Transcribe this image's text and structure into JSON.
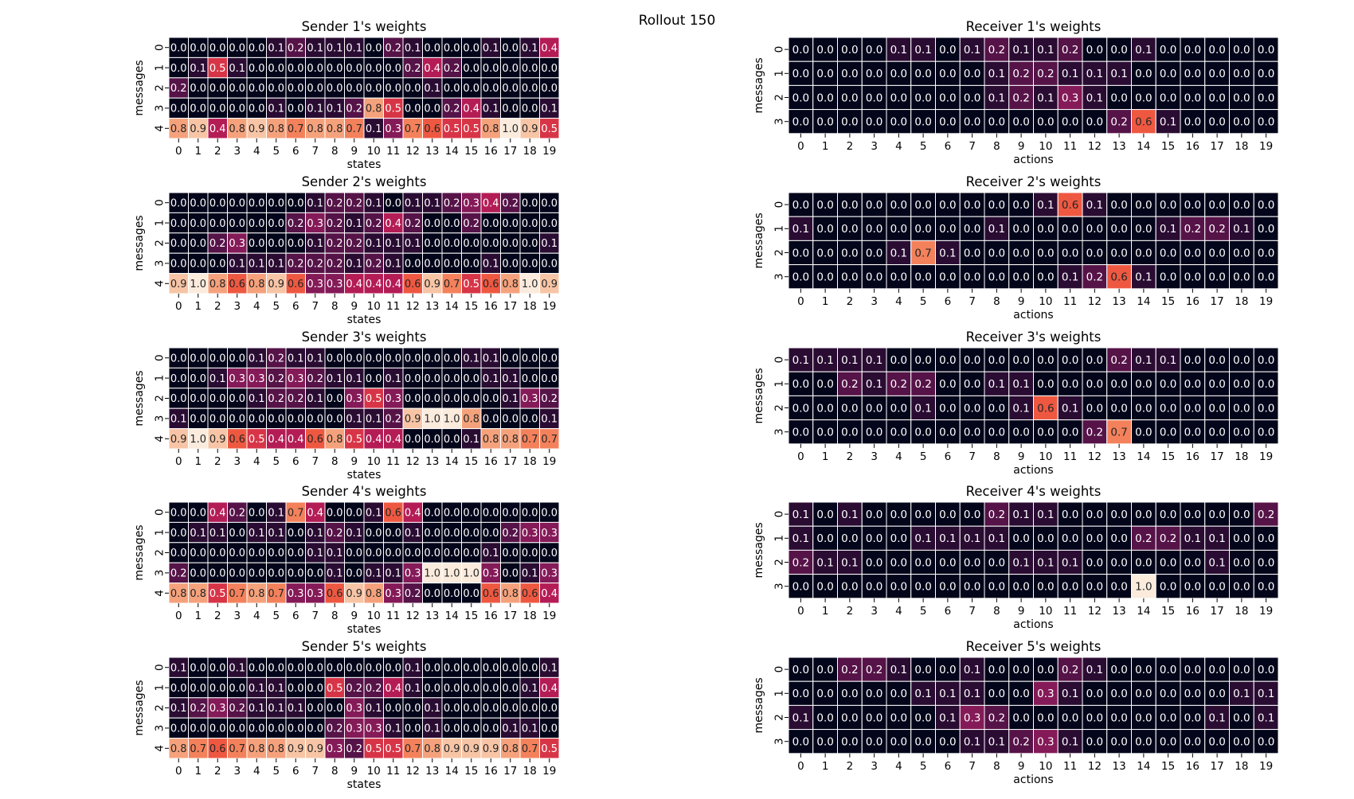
{
  "suptitle": "Rollout 150",
  "colormap": [
    "#03051a",
    "#3b0f3e",
    "#7e1a58",
    "#c11d54",
    "#ec4c3a",
    "#f4875f",
    "#f6b48f",
    "#faebdd"
  ],
  "grid_line_color": "#ffffff",
  "chart_data": [
    {
      "type": "heatmap",
      "title": "Sender 1's weights",
      "xlabel": "states",
      "ylabel": "messages",
      "x": [
        0,
        1,
        2,
        3,
        4,
        5,
        6,
        7,
        8,
        9,
        10,
        11,
        12,
        13,
        14,
        15,
        16,
        17,
        18,
        19
      ],
      "y": [
        0,
        1,
        2,
        3,
        4
      ],
      "values": [
        [
          0.0,
          0.0,
          0.0,
          0.0,
          0.0,
          0.1,
          0.2,
          0.1,
          0.1,
          0.1,
          0.0,
          0.2,
          0.1,
          0.0,
          0.0,
          0.0,
          0.1,
          0.0,
          0.1,
          0.4
        ],
        [
          0.0,
          0.1,
          0.5,
          0.1,
          0.0,
          0.0,
          0.0,
          0.0,
          0.0,
          0.0,
          0.0,
          0.0,
          0.2,
          0.4,
          0.2,
          0.0,
          0.0,
          0.0,
          0.0,
          0.0
        ],
        [
          0.2,
          0.0,
          0.0,
          0.0,
          0.0,
          0.0,
          0.0,
          0.0,
          0.0,
          0.0,
          0.0,
          0.0,
          0.0,
          0.1,
          0.0,
          0.0,
          0.0,
          0.0,
          0.0,
          0.0
        ],
        [
          0.0,
          0.0,
          0.0,
          0.0,
          0.0,
          0.1,
          0.0,
          0.1,
          0.1,
          0.2,
          0.8,
          0.5,
          0.0,
          0.0,
          0.2,
          0.4,
          0.1,
          0.0,
          0.0,
          0.1
        ],
        [
          0.8,
          0.9,
          0.4,
          0.8,
          0.9,
          0.8,
          0.7,
          0.8,
          0.8,
          0.7,
          0.1,
          0.3,
          0.7,
          0.6,
          0.5,
          0.5,
          0.8,
          1.0,
          0.9,
          0.5
        ]
      ]
    },
    {
      "type": "heatmap",
      "title": "Receiver 1's weights",
      "xlabel": "actions",
      "ylabel": "messages",
      "x": [
        0,
        1,
        2,
        3,
        4,
        5,
        6,
        7,
        8,
        9,
        10,
        11,
        12,
        13,
        14,
        15,
        16,
        17,
        18,
        19
      ],
      "y": [
        0,
        1,
        2,
        3
      ],
      "values": [
        [
          0.0,
          0.0,
          0.0,
          0.0,
          0.1,
          0.1,
          0.0,
          0.1,
          0.2,
          0.1,
          0.1,
          0.2,
          0.0,
          0.0,
          0.1,
          0.0,
          0.0,
          0.0,
          0.0,
          0.0
        ],
        [
          0.0,
          0.0,
          0.0,
          0.0,
          0.0,
          0.0,
          0.0,
          0.0,
          0.1,
          0.2,
          0.2,
          0.1,
          0.1,
          0.1,
          0.0,
          0.0,
          0.0,
          0.0,
          0.0,
          0.0
        ],
        [
          0.0,
          0.0,
          0.0,
          0.0,
          0.0,
          0.0,
          0.0,
          0.0,
          0.1,
          0.2,
          0.1,
          0.3,
          0.1,
          0.0,
          0.0,
          0.0,
          0.0,
          0.0,
          0.0,
          0.0
        ],
        [
          0.0,
          0.0,
          0.0,
          0.0,
          0.0,
          0.0,
          0.0,
          0.0,
          0.0,
          0.0,
          0.0,
          0.0,
          0.0,
          0.2,
          0.6,
          0.1,
          0.0,
          0.0,
          0.0,
          0.0
        ]
      ]
    },
    {
      "type": "heatmap",
      "title": "Sender 2's weights",
      "xlabel": "states",
      "ylabel": "messages",
      "x": [
        0,
        1,
        2,
        3,
        4,
        5,
        6,
        7,
        8,
        9,
        10,
        11,
        12,
        13,
        14,
        15,
        16,
        17,
        18,
        19
      ],
      "y": [
        0,
        1,
        2,
        3,
        4
      ],
      "values": [
        [
          0.0,
          0.0,
          0.0,
          0.0,
          0.0,
          0.0,
          0.0,
          0.1,
          0.2,
          0.2,
          0.1,
          0.0,
          0.1,
          0.1,
          0.2,
          0.3,
          0.4,
          0.2,
          0.0,
          0.0
        ],
        [
          0.0,
          0.0,
          0.0,
          0.0,
          0.0,
          0.0,
          0.2,
          0.3,
          0.2,
          0.1,
          0.2,
          0.4,
          0.2,
          0.0,
          0.0,
          0.2,
          0.0,
          0.0,
          0.0,
          0.0
        ],
        [
          0.0,
          0.0,
          0.2,
          0.3,
          0.0,
          0.0,
          0.0,
          0.1,
          0.2,
          0.2,
          0.1,
          0.1,
          0.1,
          0.0,
          0.0,
          0.0,
          0.0,
          0.0,
          0.0,
          0.1
        ],
        [
          0.0,
          0.0,
          0.0,
          0.1,
          0.1,
          0.1,
          0.2,
          0.2,
          0.2,
          0.1,
          0.2,
          0.1,
          0.0,
          0.0,
          0.0,
          0.0,
          0.1,
          0.0,
          0.0,
          0.0
        ],
        [
          0.9,
          1.0,
          0.8,
          0.6,
          0.8,
          0.9,
          0.6,
          0.3,
          0.3,
          0.4,
          0.4,
          0.4,
          0.6,
          0.9,
          0.7,
          0.5,
          0.6,
          0.8,
          1.0,
          0.9
        ]
      ]
    },
    {
      "type": "heatmap",
      "title": "Receiver 2's weights",
      "xlabel": "actions",
      "ylabel": "messages",
      "x": [
        0,
        1,
        2,
        3,
        4,
        5,
        6,
        7,
        8,
        9,
        10,
        11,
        12,
        13,
        14,
        15,
        16,
        17,
        18,
        19
      ],
      "y": [
        0,
        1,
        2,
        3
      ],
      "values": [
        [
          0.0,
          0.0,
          0.0,
          0.0,
          0.0,
          0.0,
          0.0,
          0.0,
          0.0,
          0.0,
          0.1,
          0.6,
          0.1,
          0.0,
          0.0,
          0.0,
          0.0,
          0.0,
          0.0,
          0.0
        ],
        [
          0.1,
          0.0,
          0.0,
          0.0,
          0.0,
          0.0,
          0.0,
          0.0,
          0.1,
          0.0,
          0.0,
          0.0,
          0.0,
          0.0,
          0.0,
          0.1,
          0.2,
          0.2,
          0.1,
          0.0
        ],
        [
          0.0,
          0.0,
          0.0,
          0.0,
          0.1,
          0.7,
          0.1,
          0.0,
          0.0,
          0.0,
          0.0,
          0.0,
          0.0,
          0.0,
          0.0,
          0.0,
          0.0,
          0.0,
          0.0,
          0.0
        ],
        [
          0.0,
          0.0,
          0.0,
          0.0,
          0.0,
          0.0,
          0.0,
          0.0,
          0.0,
          0.0,
          0.0,
          0.1,
          0.2,
          0.6,
          0.1,
          0.0,
          0.0,
          0.0,
          0.0,
          0.0
        ]
      ]
    },
    {
      "type": "heatmap",
      "title": "Sender 3's weights",
      "xlabel": "states",
      "ylabel": "messages",
      "x": [
        0,
        1,
        2,
        3,
        4,
        5,
        6,
        7,
        8,
        9,
        10,
        11,
        12,
        13,
        14,
        15,
        16,
        17,
        18,
        19
      ],
      "y": [
        0,
        1,
        2,
        3,
        4
      ],
      "values": [
        [
          0.0,
          0.0,
          0.0,
          0.0,
          0.1,
          0.2,
          0.1,
          0.1,
          0.0,
          0.0,
          0.0,
          0.0,
          0.0,
          0.0,
          0.0,
          0.1,
          0.1,
          0.0,
          0.0,
          0.0
        ],
        [
          0.0,
          0.0,
          0.1,
          0.3,
          0.3,
          0.2,
          0.3,
          0.2,
          0.1,
          0.1,
          0.0,
          0.1,
          0.0,
          0.0,
          0.0,
          0.0,
          0.1,
          0.1,
          0.0,
          0.0
        ],
        [
          0.0,
          0.0,
          0.0,
          0.0,
          0.1,
          0.2,
          0.2,
          0.1,
          0.0,
          0.3,
          0.5,
          0.3,
          0.0,
          0.0,
          0.0,
          0.0,
          0.0,
          0.1,
          0.3,
          0.2
        ],
        [
          0.1,
          0.0,
          0.0,
          0.0,
          0.0,
          0.0,
          0.0,
          0.0,
          0.0,
          0.1,
          0.1,
          0.2,
          0.9,
          1.0,
          1.0,
          0.8,
          0.0,
          0.0,
          0.0,
          0.1
        ],
        [
          0.9,
          1.0,
          0.9,
          0.6,
          0.5,
          0.4,
          0.4,
          0.6,
          0.8,
          0.5,
          0.4,
          0.4,
          0.0,
          0.0,
          0.0,
          0.1,
          0.8,
          0.8,
          0.7,
          0.7
        ]
      ]
    },
    {
      "type": "heatmap",
      "title": "Receiver 3's weights",
      "xlabel": "actions",
      "ylabel": "messages",
      "x": [
        0,
        1,
        2,
        3,
        4,
        5,
        6,
        7,
        8,
        9,
        10,
        11,
        12,
        13,
        14,
        15,
        16,
        17,
        18,
        19
      ],
      "y": [
        0,
        1,
        2,
        3
      ],
      "values": [
        [
          0.1,
          0.1,
          0.1,
          0.1,
          0.0,
          0.0,
          0.0,
          0.0,
          0.0,
          0.0,
          0.0,
          0.0,
          0.0,
          0.2,
          0.1,
          0.1,
          0.0,
          0.0,
          0.0,
          0.0
        ],
        [
          0.0,
          0.0,
          0.2,
          0.1,
          0.2,
          0.2,
          0.0,
          0.0,
          0.1,
          0.1,
          0.0,
          0.0,
          0.0,
          0.0,
          0.0,
          0.0,
          0.0,
          0.0,
          0.0,
          0.0
        ],
        [
          0.0,
          0.0,
          0.0,
          0.0,
          0.0,
          0.1,
          0.0,
          0.0,
          0.0,
          0.1,
          0.6,
          0.1,
          0.0,
          0.0,
          0.0,
          0.0,
          0.0,
          0.0,
          0.0,
          0.0
        ],
        [
          0.0,
          0.0,
          0.0,
          0.0,
          0.0,
          0.0,
          0.0,
          0.0,
          0.0,
          0.0,
          0.0,
          0.0,
          0.2,
          0.7,
          0.0,
          0.0,
          0.0,
          0.0,
          0.0,
          0.0
        ]
      ]
    },
    {
      "type": "heatmap",
      "title": "Sender 4's weights",
      "xlabel": "states",
      "ylabel": "messages",
      "x": [
        0,
        1,
        2,
        3,
        4,
        5,
        6,
        7,
        8,
        9,
        10,
        11,
        12,
        13,
        14,
        15,
        16,
        17,
        18,
        19
      ],
      "y": [
        0,
        1,
        2,
        3,
        4
      ],
      "values": [
        [
          0.0,
          0.0,
          0.4,
          0.2,
          0.0,
          0.1,
          0.7,
          0.4,
          0.0,
          0.0,
          0.1,
          0.6,
          0.4,
          0.0,
          0.0,
          0.0,
          0.0,
          0.0,
          0.0,
          0.0
        ],
        [
          0.0,
          0.1,
          0.1,
          0.0,
          0.1,
          0.1,
          0.0,
          0.1,
          0.2,
          0.1,
          0.0,
          0.0,
          0.1,
          0.0,
          0.0,
          0.0,
          0.0,
          0.2,
          0.3,
          0.3
        ],
        [
          0.0,
          0.0,
          0.0,
          0.0,
          0.0,
          0.0,
          0.0,
          0.1,
          0.1,
          0.0,
          0.0,
          0.0,
          0.0,
          0.0,
          0.0,
          0.0,
          0.1,
          0.0,
          0.0,
          0.0
        ],
        [
          0.2,
          0.0,
          0.0,
          0.0,
          0.0,
          0.0,
          0.0,
          0.0,
          0.1,
          0.0,
          0.1,
          0.1,
          0.3,
          1.0,
          1.0,
          1.0,
          0.3,
          0.0,
          0.1,
          0.3
        ],
        [
          0.8,
          0.8,
          0.5,
          0.7,
          0.8,
          0.7,
          0.3,
          0.3,
          0.6,
          0.9,
          0.8,
          0.3,
          0.2,
          0.0,
          0.0,
          0.0,
          0.6,
          0.8,
          0.6,
          0.4
        ]
      ]
    },
    {
      "type": "heatmap",
      "title": "Receiver 4's weights",
      "xlabel": "actions",
      "ylabel": "messages",
      "x": [
        0,
        1,
        2,
        3,
        4,
        5,
        6,
        7,
        8,
        9,
        10,
        11,
        12,
        13,
        14,
        15,
        16,
        17,
        18,
        19
      ],
      "y": [
        0,
        1,
        2,
        3
      ],
      "values": [
        [
          0.1,
          0.0,
          0.1,
          0.0,
          0.0,
          0.0,
          0.0,
          0.0,
          0.2,
          0.1,
          0.1,
          0.0,
          0.0,
          0.0,
          0.0,
          0.0,
          0.0,
          0.0,
          0.0,
          0.2
        ],
        [
          0.1,
          0.0,
          0.0,
          0.0,
          0.0,
          0.1,
          0.1,
          0.1,
          0.1,
          0.0,
          0.0,
          0.0,
          0.0,
          0.0,
          0.2,
          0.2,
          0.1,
          0.1,
          0.0,
          0.0
        ],
        [
          0.2,
          0.1,
          0.1,
          0.0,
          0.0,
          0.0,
          0.0,
          0.0,
          0.0,
          0.1,
          0.1,
          0.1,
          0.0,
          0.0,
          0.0,
          0.0,
          0.0,
          0.1,
          0.0,
          0.0
        ],
        [
          0.0,
          0.0,
          0.0,
          0.0,
          0.0,
          0.0,
          0.0,
          0.0,
          0.0,
          0.0,
          0.0,
          0.0,
          0.0,
          0.0,
          1.0,
          0.0,
          0.0,
          0.0,
          0.0,
          0.0
        ]
      ]
    },
    {
      "type": "heatmap",
      "title": "Sender 5's weights",
      "xlabel": "states",
      "ylabel": "messages",
      "x": [
        0,
        1,
        2,
        3,
        4,
        5,
        6,
        7,
        8,
        9,
        10,
        11,
        12,
        13,
        14,
        15,
        16,
        17,
        18,
        19
      ],
      "y": [
        0,
        1,
        2,
        3,
        4
      ],
      "values": [
        [
          0.1,
          0.0,
          0.0,
          0.1,
          0.0,
          0.0,
          0.0,
          0.0,
          0.0,
          0.0,
          0.0,
          0.0,
          0.1,
          0.0,
          0.0,
          0.0,
          0.0,
          0.0,
          0.0,
          0.1
        ],
        [
          0.0,
          0.0,
          0.0,
          0.0,
          0.1,
          0.1,
          0.0,
          0.0,
          0.5,
          0.2,
          0.2,
          0.4,
          0.1,
          0.0,
          0.0,
          0.0,
          0.0,
          0.0,
          0.1,
          0.4
        ],
        [
          0.1,
          0.2,
          0.3,
          0.2,
          0.1,
          0.1,
          0.1,
          0.0,
          0.0,
          0.3,
          0.1,
          0.0,
          0.0,
          0.1,
          0.0,
          0.0,
          0.0,
          0.0,
          0.0,
          0.0
        ],
        [
          0.0,
          0.0,
          0.0,
          0.0,
          0.0,
          0.0,
          0.0,
          0.0,
          0.2,
          0.3,
          0.3,
          0.1,
          0.0,
          0.1,
          0.0,
          0.0,
          0.0,
          0.1,
          0.1,
          0.0
        ],
        [
          0.8,
          0.7,
          0.6,
          0.7,
          0.8,
          0.8,
          0.9,
          0.9,
          0.3,
          0.2,
          0.5,
          0.5,
          0.7,
          0.8,
          0.9,
          0.9,
          0.9,
          0.8,
          0.7,
          0.5
        ]
      ]
    },
    {
      "type": "heatmap",
      "title": "Receiver 5's weights",
      "xlabel": "actions",
      "ylabel": "messages",
      "x": [
        0,
        1,
        2,
        3,
        4,
        5,
        6,
        7,
        8,
        9,
        10,
        11,
        12,
        13,
        14,
        15,
        16,
        17,
        18,
        19
      ],
      "y": [
        0,
        1,
        2,
        3
      ],
      "values": [
        [
          0.0,
          0.0,
          0.2,
          0.2,
          0.1,
          0.0,
          0.0,
          0.1,
          0.0,
          0.0,
          0.0,
          0.2,
          0.1,
          0.0,
          0.0,
          0.0,
          0.0,
          0.0,
          0.0,
          0.0
        ],
        [
          0.0,
          0.0,
          0.0,
          0.0,
          0.0,
          0.1,
          0.1,
          0.1,
          0.0,
          0.0,
          0.3,
          0.1,
          0.0,
          0.0,
          0.0,
          0.0,
          0.0,
          0.0,
          0.1,
          0.1
        ],
        [
          0.1,
          0.0,
          0.0,
          0.0,
          0.0,
          0.0,
          0.1,
          0.3,
          0.2,
          0.0,
          0.0,
          0.0,
          0.0,
          0.0,
          0.0,
          0.0,
          0.0,
          0.1,
          0.0,
          0.1
        ],
        [
          0.0,
          0.0,
          0.0,
          0.0,
          0.0,
          0.0,
          0.0,
          0.1,
          0.1,
          0.2,
          0.3,
          0.1,
          0.0,
          0.0,
          0.0,
          0.0,
          0.0,
          0.0,
          0.0,
          0.0
        ]
      ]
    }
  ]
}
